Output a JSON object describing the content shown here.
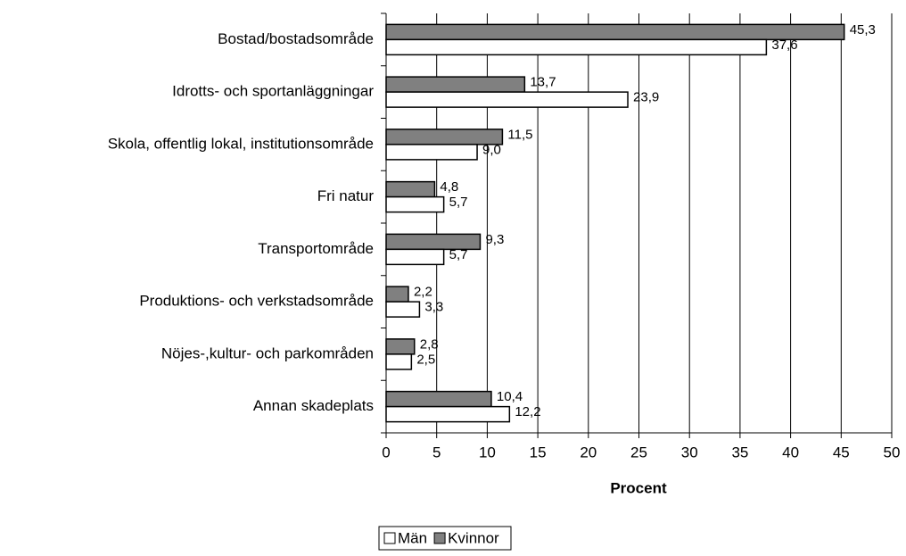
{
  "chart_data": {
    "type": "bar",
    "orientation": "horizontal",
    "x_label": "Procent",
    "categories": [
      "Bostad/bostadsområde",
      "Idrotts- och sportanläggningar",
      "Skola, offentlig lokal, institutionsområde",
      "Fri natur",
      "Transportområde",
      "Produktions- och verkstadsområde",
      "Nöjes-,kultur- och parkområden",
      "Annan skadeplats"
    ],
    "series": [
      {
        "name": "Män",
        "color": "#ffffff",
        "values": [
          37.6,
          23.9,
          9.0,
          5.7,
          5.7,
          3.3,
          2.5,
          12.2
        ],
        "value_labels": [
          "37,6",
          "23,9",
          "9,0",
          "5,7",
          "5,7",
          "3,3",
          "2,5",
          "12,2"
        ]
      },
      {
        "name": "Kvinnor",
        "color": "#808080",
        "values": [
          45.3,
          13.7,
          11.5,
          4.8,
          9.3,
          2.2,
          2.8,
          10.4
        ],
        "value_labels": [
          "45,3",
          "13,7",
          "11,5",
          "4,8",
          "9,3",
          "2,2",
          "2,8",
          "10,4"
        ]
      }
    ],
    "xlim": [
      0,
      50
    ],
    "xticks": [
      0,
      5,
      10,
      15,
      20,
      25,
      30,
      35,
      40,
      45,
      50
    ],
    "grid": true,
    "legend": "bottom"
  }
}
